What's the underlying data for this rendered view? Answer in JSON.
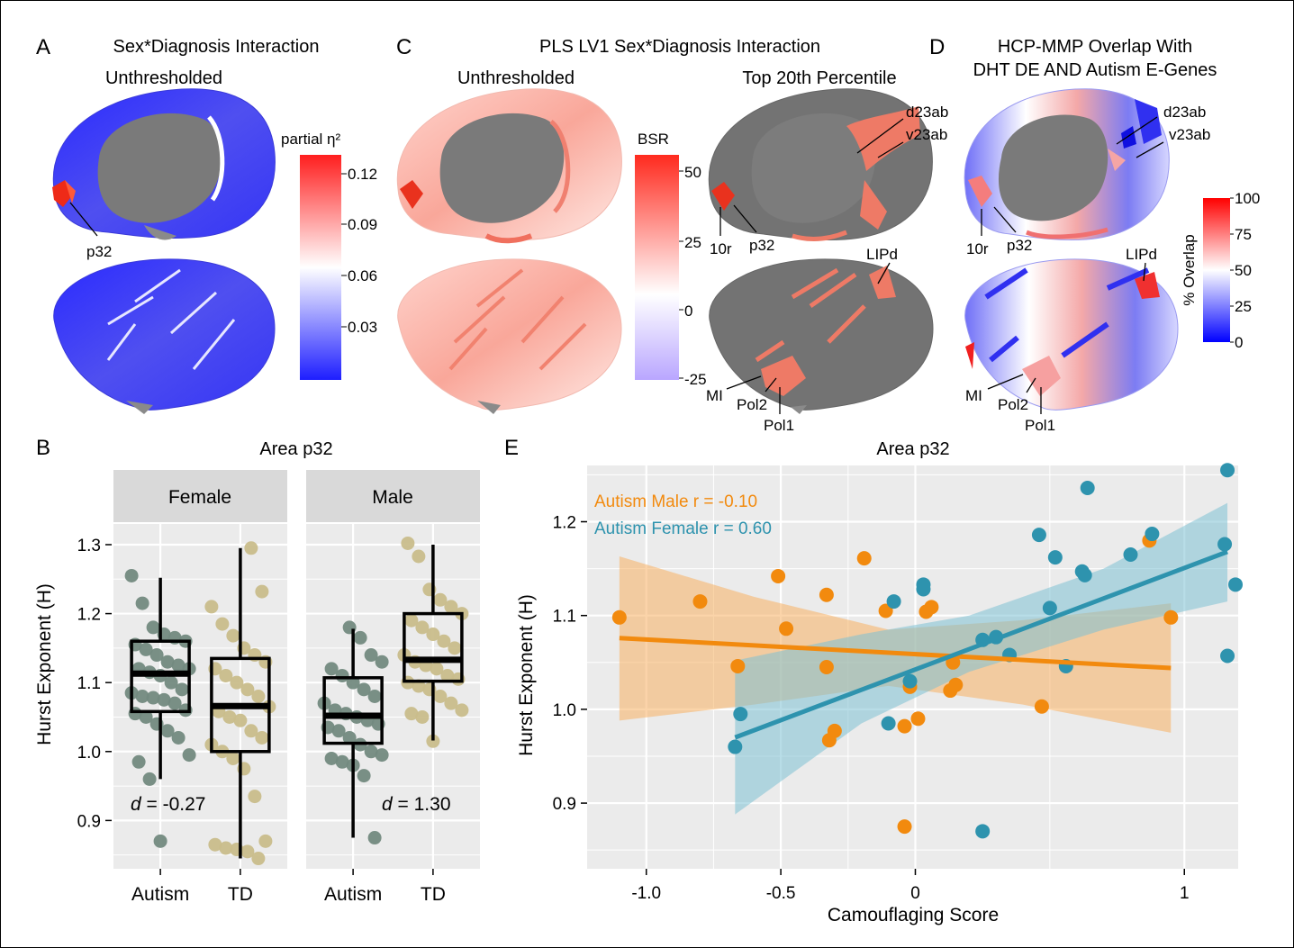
{
  "panels": {
    "A": {
      "letter": "A",
      "title": "Sex*Diagnosis Interaction",
      "subtitle": "Unthresholded",
      "colorbar": {
        "title": "partial η²",
        "ticks": [
          "0.12",
          "0.09",
          "0.06",
          "0.03"
        ],
        "colors": [
          "#ff1e1e",
          "#ffffff",
          "#1e1eff"
        ]
      },
      "labels": [
        "p32"
      ]
    },
    "C": {
      "letter": "C",
      "title": "PLS LV1 Sex*Diagnosis Interaction",
      "subtitle_left": "Unthresholded",
      "subtitle_right": "Top 20th Percentile",
      "colorbar": {
        "title": "BSR",
        "ticks": [
          "50",
          "25",
          "0",
          "-25"
        ],
        "colors": [
          "#ff2a1e",
          "#ffffff",
          "#b9a6ff"
        ]
      },
      "labels": [
        "d23ab",
        "v23ab",
        "10r",
        "p32",
        "LIPd",
        "MI",
        "Pol2",
        "Pol1"
      ]
    },
    "D": {
      "letter": "D",
      "title_line1": "HCP-MMP Overlap With",
      "title_line2": "DHT DE AND Autism E-Genes",
      "colorbar": {
        "title": "% Overlap",
        "ticks": [
          "100",
          "75",
          "50",
          "25",
          "0"
        ],
        "colors": [
          "#ff0000",
          "#ffffff",
          "#0000ff"
        ]
      },
      "labels": [
        "d23ab",
        "v23ab",
        "10r",
        "p32",
        "LIPd",
        "MI",
        "Pol2",
        "Pol1"
      ]
    },
    "B": {
      "letter": "B",
      "title": "Area p32",
      "ylabel": "Hurst Exponent (H)",
      "facets": [
        {
          "name": "Female",
          "effect_prefix": "d",
          "effect_value": " = -0.27"
        },
        {
          "name": "Male",
          "effect_prefix": "d",
          "effect_value": " = 1.30"
        }
      ],
      "xcats": [
        "Autism",
        "TD"
      ]
    },
    "E": {
      "letter": "E",
      "title": "Area p32",
      "xlabel": "Camouflaging Score",
      "ylabel": "Hurst Exponent (H)",
      "legend_male": "Autism Male r = -0.10",
      "legend_female": "Autism Female r = 0.60"
    }
  },
  "colors": {
    "male": "#f28a0e",
    "female": "#2e93ae",
    "autism_point": "#738a7f",
    "td_point": "#c9bd8b",
    "panel_bg": "#ebebeb",
    "strip_bg": "#d9d9d9",
    "cortex_gray": "#737373"
  },
  "chart_data": [
    {
      "type": "box",
      "title": "Area p32",
      "ylabel": "Hurst Exponent (H)",
      "ylim": [
        0.83,
        1.33
      ],
      "yticks": [
        0.9,
        1.0,
        1.1,
        1.2,
        1.3
      ],
      "facets": [
        "Female",
        "Male"
      ],
      "categories": [
        "Autism",
        "TD"
      ],
      "boxes": [
        {
          "facet": "Female",
          "group": "Autism",
          "whisker_low": 0.96,
          "q1": 1.058,
          "median": 1.113,
          "q3": 1.16,
          "whisker_high": 1.252
        },
        {
          "facet": "Female",
          "group": "TD",
          "whisker_low": 0.845,
          "q1": 1.0,
          "median": 1.066,
          "q3": 1.135,
          "whisker_high": 1.295
        },
        {
          "facet": "Male",
          "group": "Autism",
          "whisker_low": 0.875,
          "q1": 1.012,
          "median": 1.052,
          "q3": 1.107,
          "whisker_high": 1.178
        },
        {
          "facet": "Male",
          "group": "TD",
          "whisker_low": 1.016,
          "q1": 1.102,
          "median": 1.133,
          "q3": 1.2,
          "whisker_high": 1.3
        }
      ],
      "points": [
        {
          "facet": "Female",
          "group": "Autism",
          "y": [
            1.255,
            1.215,
            1.18,
            1.17,
            1.165,
            1.16,
            1.155,
            1.148,
            1.14,
            1.13,
            1.125,
            1.12,
            1.12,
            1.115,
            1.11,
            1.1,
            1.09,
            1.085,
            1.08,
            1.078,
            1.075,
            1.07,
            1.06,
            1.055,
            1.05,
            1.04,
            1.03,
            1.02,
            0.995,
            0.985,
            0.96,
            0.87
          ]
        },
        {
          "facet": "Female",
          "group": "TD",
          "y": [
            1.295,
            1.232,
            1.21,
            1.185,
            1.168,
            1.15,
            1.14,
            1.13,
            1.12,
            1.11,
            1.1,
            1.09,
            1.08,
            1.065,
            1.058,
            1.05,
            1.045,
            1.03,
            1.02,
            1.01,
            1.0,
            0.99,
            0.975,
            0.935,
            0.87,
            0.865,
            0.86,
            0.858,
            0.855,
            0.845
          ]
        },
        {
          "facet": "Male",
          "group": "Autism",
          "y": [
            1.18,
            1.165,
            1.14,
            1.13,
            1.12,
            1.11,
            1.1,
            1.09,
            1.08,
            1.07,
            1.06,
            1.055,
            1.05,
            1.045,
            1.04,
            1.035,
            1.03,
            1.02,
            1.01,
            1.0,
            0.995,
            0.99,
            0.985,
            0.98,
            0.965,
            0.875
          ]
        },
        {
          "facet": "Male",
          "group": "TD",
          "y": [
            1.302,
            1.283,
            1.235,
            1.22,
            1.21,
            1.2,
            1.19,
            1.18,
            1.17,
            1.16,
            1.15,
            1.14,
            1.13,
            1.125,
            1.12,
            1.11,
            1.105,
            1.1,
            1.095,
            1.09,
            1.08,
            1.07,
            1.06,
            1.055,
            1.05,
            1.015
          ]
        }
      ],
      "annotations": [
        "d = -0.27",
        "d = 1.30"
      ]
    },
    {
      "type": "scatter",
      "title": "Area p32",
      "xlabel": "Camouflaging Score",
      "ylabel": "Hurst Exponent (H)",
      "xlim": [
        -1.22,
        1.2
      ],
      "ylim": [
        0.83,
        1.26
      ],
      "xticks": [
        -1.0,
        -0.5,
        0,
        1
      ],
      "xtick_labels": [
        "-1.0",
        "-0.5",
        "0",
        "1"
      ],
      "yticks": [
        0.9,
        1.0,
        1.1,
        1.2
      ],
      "series": [
        {
          "name": "Autism Male r = -0.10",
          "points": [
            [
              -1.1,
              1.098
            ],
            [
              -0.8,
              1.115
            ],
            [
              -0.66,
              1.046
            ],
            [
              -0.51,
              1.142
            ],
            [
              -0.48,
              1.086
            ],
            [
              -0.33,
              1.122
            ],
            [
              -0.33,
              1.045
            ],
            [
              -0.32,
              0.967
            ],
            [
              -0.3,
              0.977
            ],
            [
              -0.19,
              1.161
            ],
            [
              -0.11,
              1.105
            ],
            [
              -0.04,
              0.982
            ],
            [
              -0.02,
              1.024
            ],
            [
              0.01,
              0.99
            ],
            [
              0.04,
              1.104
            ],
            [
              0.06,
              1.109
            ],
            [
              0.13,
              1.02
            ],
            [
              0.14,
              1.05
            ],
            [
              0.15,
              1.026
            ],
            [
              0.47,
              1.003
            ],
            [
              0.87,
              1.18
            ],
            [
              0.95,
              1.098
            ],
            [
              -0.04,
              0.875
            ]
          ],
          "fit": {
            "x": [
              -1.1,
              0.95
            ],
            "y": [
              1.076,
              1.044
            ]
          },
          "ribbon": {
            "x": [
              -1.1,
              -0.6,
              -0.1,
              0.4,
              0.95
            ],
            "lower": [
              0.988,
              1.005,
              1.025,
              1.005,
              0.975
            ],
            "upper": [
              1.163,
              1.12,
              1.085,
              1.095,
              1.113
            ]
          }
        },
        {
          "name": "Autism Female r = 0.60",
          "points": [
            [
              -0.67,
              0.96
            ],
            [
              -0.65,
              0.995
            ],
            [
              -0.1,
              0.985
            ],
            [
              -0.08,
              1.115
            ],
            [
              0.03,
              1.133
            ],
            [
              0.03,
              1.128
            ],
            [
              -0.02,
              1.03
            ],
            [
              0.25,
              1.074
            ],
            [
              0.3,
              1.077
            ],
            [
              0.35,
              1.058
            ],
            [
              0.46,
              1.186
            ],
            [
              0.5,
              1.108
            ],
            [
              0.52,
              1.162
            ],
            [
              0.62,
              1.147
            ],
            [
              0.63,
              1.143
            ],
            [
              0.64,
              1.236
            ],
            [
              0.8,
              1.165
            ],
            [
              0.88,
              1.187
            ],
            [
              1.15,
              1.176
            ],
            [
              1.16,
              1.255
            ],
            [
              1.16,
              1.057
            ],
            [
              1.19,
              1.133
            ],
            [
              0.25,
              0.87
            ],
            [
              0.56,
              1.046
            ]
          ],
          "fit": {
            "x": [
              -0.67,
              1.16
            ],
            "y": [
              0.97,
              1.168
            ]
          },
          "ribbon": {
            "x": [
              -0.67,
              -0.2,
              0.2,
              0.7,
              1.16
            ],
            "lower": [
              0.888,
              0.985,
              1.04,
              1.085,
              1.115
            ],
            "upper": [
              1.052,
              1.08,
              1.1,
              1.15,
              1.22
            ]
          }
        }
      ]
    }
  ]
}
